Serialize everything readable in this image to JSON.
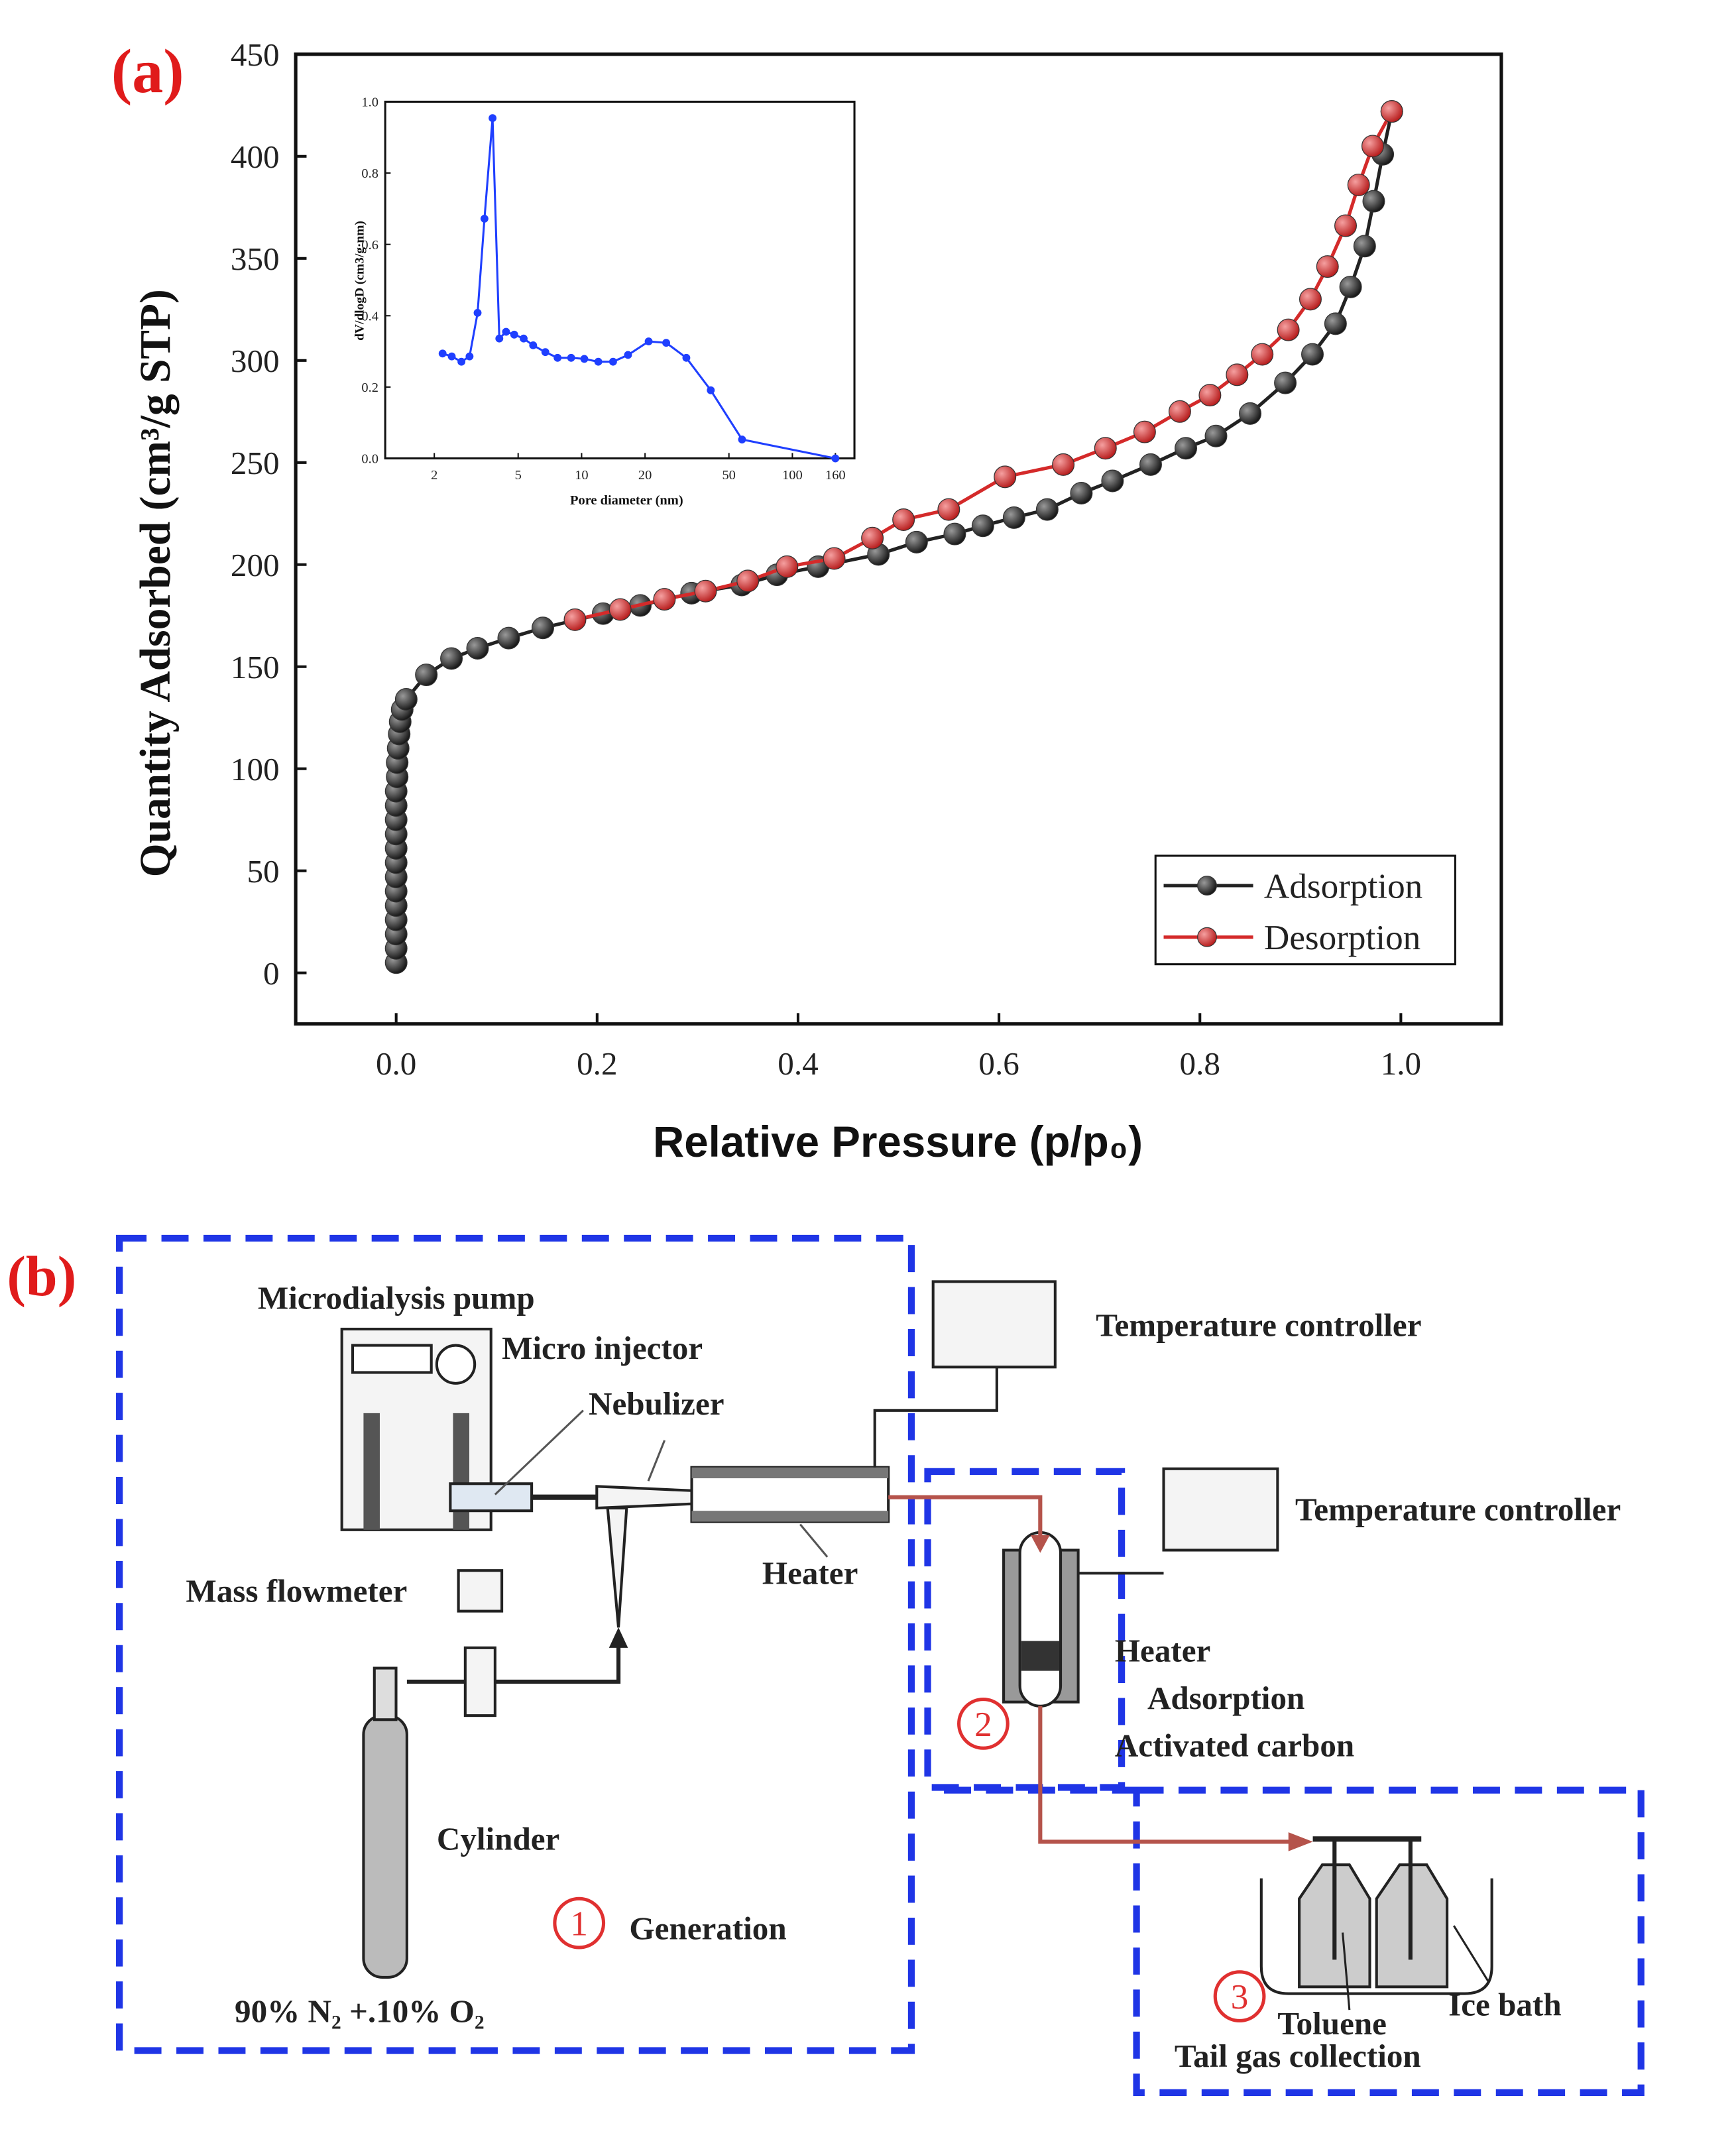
{
  "panel_labels": [
    "(a)",
    "(b)"
  ],
  "chart_data": [
    {
      "type": "line",
      "xlabel": "Relative Pressure (p/p₀)",
      "ylabel": "Quantity Adsorbed (cm³/g STP)",
      "xlim": [
        -0.1,
        1.1
      ],
      "ylim": [
        -25,
        450
      ],
      "xticks": [
        {
          "value": 0,
          "label": "0.0"
        },
        {
          "value": 0.2,
          "label": "0.2"
        },
        {
          "value": 0.4,
          "label": "0.4"
        },
        {
          "value": 0.6,
          "label": "0.6"
        },
        {
          "value": 0.8,
          "label": "0.8"
        },
        {
          "value": 1,
          "label": "1.0"
        }
      ],
      "yticks": [
        0,
        50,
        100,
        150,
        200,
        250,
        300,
        350,
        400,
        450
      ],
      "grid": false,
      "legend": "lower right",
      "series": [
        {
          "name": "Adsorption",
          "color": "#222222",
          "x": [
            0,
            0,
            0,
            0,
            0,
            0,
            0,
            0,
            0,
            0,
            0,
            0,
            0,
            0.001,
            0.001,
            0.002,
            0.003,
            0.004,
            0.006,
            0.01,
            0.03,
            0.055,
            0.081,
            0.112,
            0.146,
            0.206,
            0.243,
            0.294,
            0.344,
            0.379,
            0.42,
            0.48,
            0.518,
            0.556,
            0.584,
            0.615,
            0.648,
            0.682,
            0.713,
            0.751,
            0.786,
            0.816,
            0.85,
            0.885,
            0.912,
            0.935,
            0.95,
            0.964,
            0.973,
            0.982,
            0.991
          ],
          "values": [
            5,
            12,
            19,
            26,
            33,
            40,
            47,
            54,
            61,
            68,
            75,
            82,
            89,
            96,
            103,
            110,
            117,
            123,
            129,
            134,
            146,
            154,
            159,
            164,
            169,
            176,
            180,
            186,
            190,
            195,
            199,
            205,
            211,
            215,
            219,
            223,
            227,
            235,
            241,
            249,
            257,
            263,
            274,
            289,
            303,
            318,
            336,
            356,
            378,
            401,
            422
          ]
        },
        {
          "name": "Desorption",
          "color": "#d42a2a",
          "x": [
            0.991,
            0.972,
            0.958,
            0.945,
            0.927,
            0.91,
            0.888,
            0.862,
            0.837,
            0.81,
            0.78,
            0.745,
            0.706,
            0.664,
            0.606,
            0.55,
            0.505,
            0.474,
            0.436,
            0.389,
            0.35,
            0.308,
            0.267,
            0.223,
            0.178
          ],
          "values": [
            422,
            405,
            386,
            366,
            346,
            330,
            315,
            303,
            293,
            283,
            275,
            265,
            257,
            249,
            243,
            227,
            222,
            213,
            203,
            199,
            192,
            187,
            183,
            178,
            173
          ]
        }
      ]
    },
    {
      "type": "line",
      "xlabel": "Pore diameter (nm)",
      "ylabel": "dV/dlogD (cm3/g·nm)",
      "xscale": "log",
      "xlim": [
        1.17,
        197
      ],
      "ylim": [
        0,
        1
      ],
      "xticks": [
        2,
        5,
        10,
        20,
        50,
        100,
        160
      ],
      "yticks": [
        {
          "value": 0,
          "label": "0.0"
        },
        {
          "value": 0.2,
          "label": "0.2"
        },
        {
          "value": 0.4,
          "label": "0.4"
        },
        {
          "value": 0.6,
          "label": "0.6"
        },
        {
          "value": 0.8,
          "label": "0.8"
        },
        {
          "value": 1,
          "label": "1.0"
        }
      ],
      "grid": false,
      "series": [
        {
          "color": "#1f3fff",
          "x": [
            2.19,
            2.42,
            2.69,
            2.94,
            3.21,
            3.46,
            3.78,
            4.07,
            4.38,
            4.79,
            5.31,
            5.89,
            6.73,
            7.69,
            8.92,
            10.3,
            12.0,
            14.1,
            16.6,
            20.8,
            25.2,
            31.4,
            41.0,
            57.7,
            160
          ],
          "values": [
            0.294,
            0.286,
            0.271,
            0.286,
            0.408,
            0.672,
            0.954,
            0.336,
            0.355,
            0.347,
            0.336,
            0.317,
            0.298,
            0.282,
            0.282,
            0.279,
            0.271,
            0.271,
            0.29,
            0.328,
            0.324,
            0.282,
            0.191,
            0.053,
            0
          ]
        }
      ]
    }
  ],
  "diagram": {
    "labels": [
      "Microdialysis pump",
      "Micro injector",
      "Nebulizer",
      "Heater",
      "Mass flowmeter",
      "Cylinder",
      "Generation",
      "90% N₂ +.10% O₂",
      "Temperature controller",
      "Temperature controller",
      "Heater",
      "Adsorption",
      "Activated carbon",
      "Toluene",
      "Ice bath",
      "Tail gas collection"
    ],
    "steps": [
      "1",
      "2",
      "3"
    ]
  }
}
